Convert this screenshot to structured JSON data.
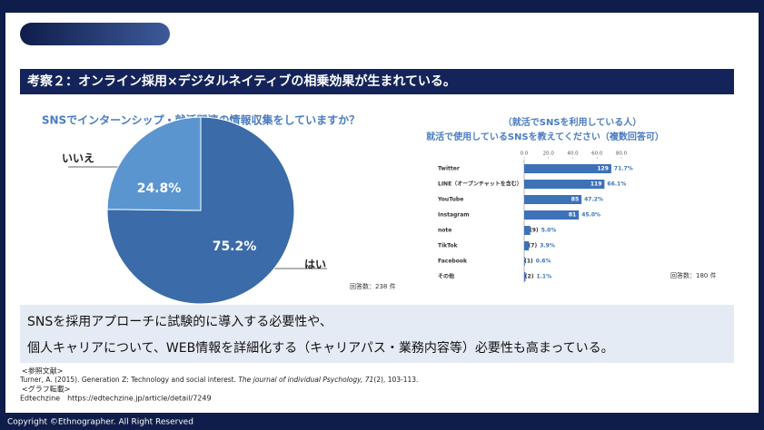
{
  "header": {
    "title": "考察２：オンライン採用×デジタルネイティブの相乗効果が生まれている。"
  },
  "chart_data": [
    {
      "type": "pie",
      "title": "SNSでインターンシップ・就活関連の情報収集をしていますか？",
      "categories": [
        "いいえ",
        "はい"
      ],
      "values": [
        24.8,
        75.2
      ],
      "value_labels": [
        "24.8%",
        "75.2%"
      ],
      "colors": [
        "#5b95d0",
        "#3b6ba8"
      ],
      "note": "回答数：238 件"
    },
    {
      "type": "hbar",
      "title": [
        "（就活でSNSを利用している人）",
        "就活で使用しているSNSを教えてください（複数回答可）"
      ],
      "categories": [
        "Twitter",
        "LINE（オープンチャットを含む）",
        "YouTube",
        "Instagram",
        "note",
        "TikTok",
        "Facebook",
        "その他"
      ],
      "values": [
        71.7,
        66.1,
        47.2,
        45.0,
        5.0,
        3.9,
        0.6,
        1.1
      ],
      "value_labels": [
        "71.7%",
        "66.1%",
        "47.2%",
        "45.0%",
        "5.0%",
        "3.9%",
        "0.6%",
        "1.1%"
      ],
      "count_labels": [
        "129",
        "119",
        "85",
        "81",
        "(9)",
        "(7)",
        "(1)",
        "(2)"
      ],
      "color": "#3d72b8",
      "xlim": [
        0,
        80
      ],
      "xticks": [
        {
          "value": 0,
          "label": "0.0"
        },
        {
          "value": 20,
          "label": "20.0"
        },
        {
          "value": 40,
          "label": "40.0"
        },
        {
          "value": 60,
          "label": "60.0"
        },
        {
          "value": 80,
          "label": "80.0"
        }
      ],
      "note": "回答数：180 件"
    }
  ],
  "summary": [
    "SNSを採用アプローチに試験的に導入する必要性や、",
    "個人キャリアについて、WEB情報を詳細化する（キャリアパス・業務内容等）必要性も高まっている。"
  ],
  "references": {
    "heading": "<参照文献>",
    "citation_pre": "Turner, A. (2015). Generation Z: Technology and social interest. ",
    "journal": "The journal of individual Psychology",
    "vol": ", 71",
    "citation_post": "(2), 103-113.",
    "graph_heading": "<グラフ転載>",
    "graph_source": "Edtechzine　https://edtechzine.jp/article/detail/7249"
  },
  "footer": "Copyright ©Ethnographer. All Right Reserved"
}
